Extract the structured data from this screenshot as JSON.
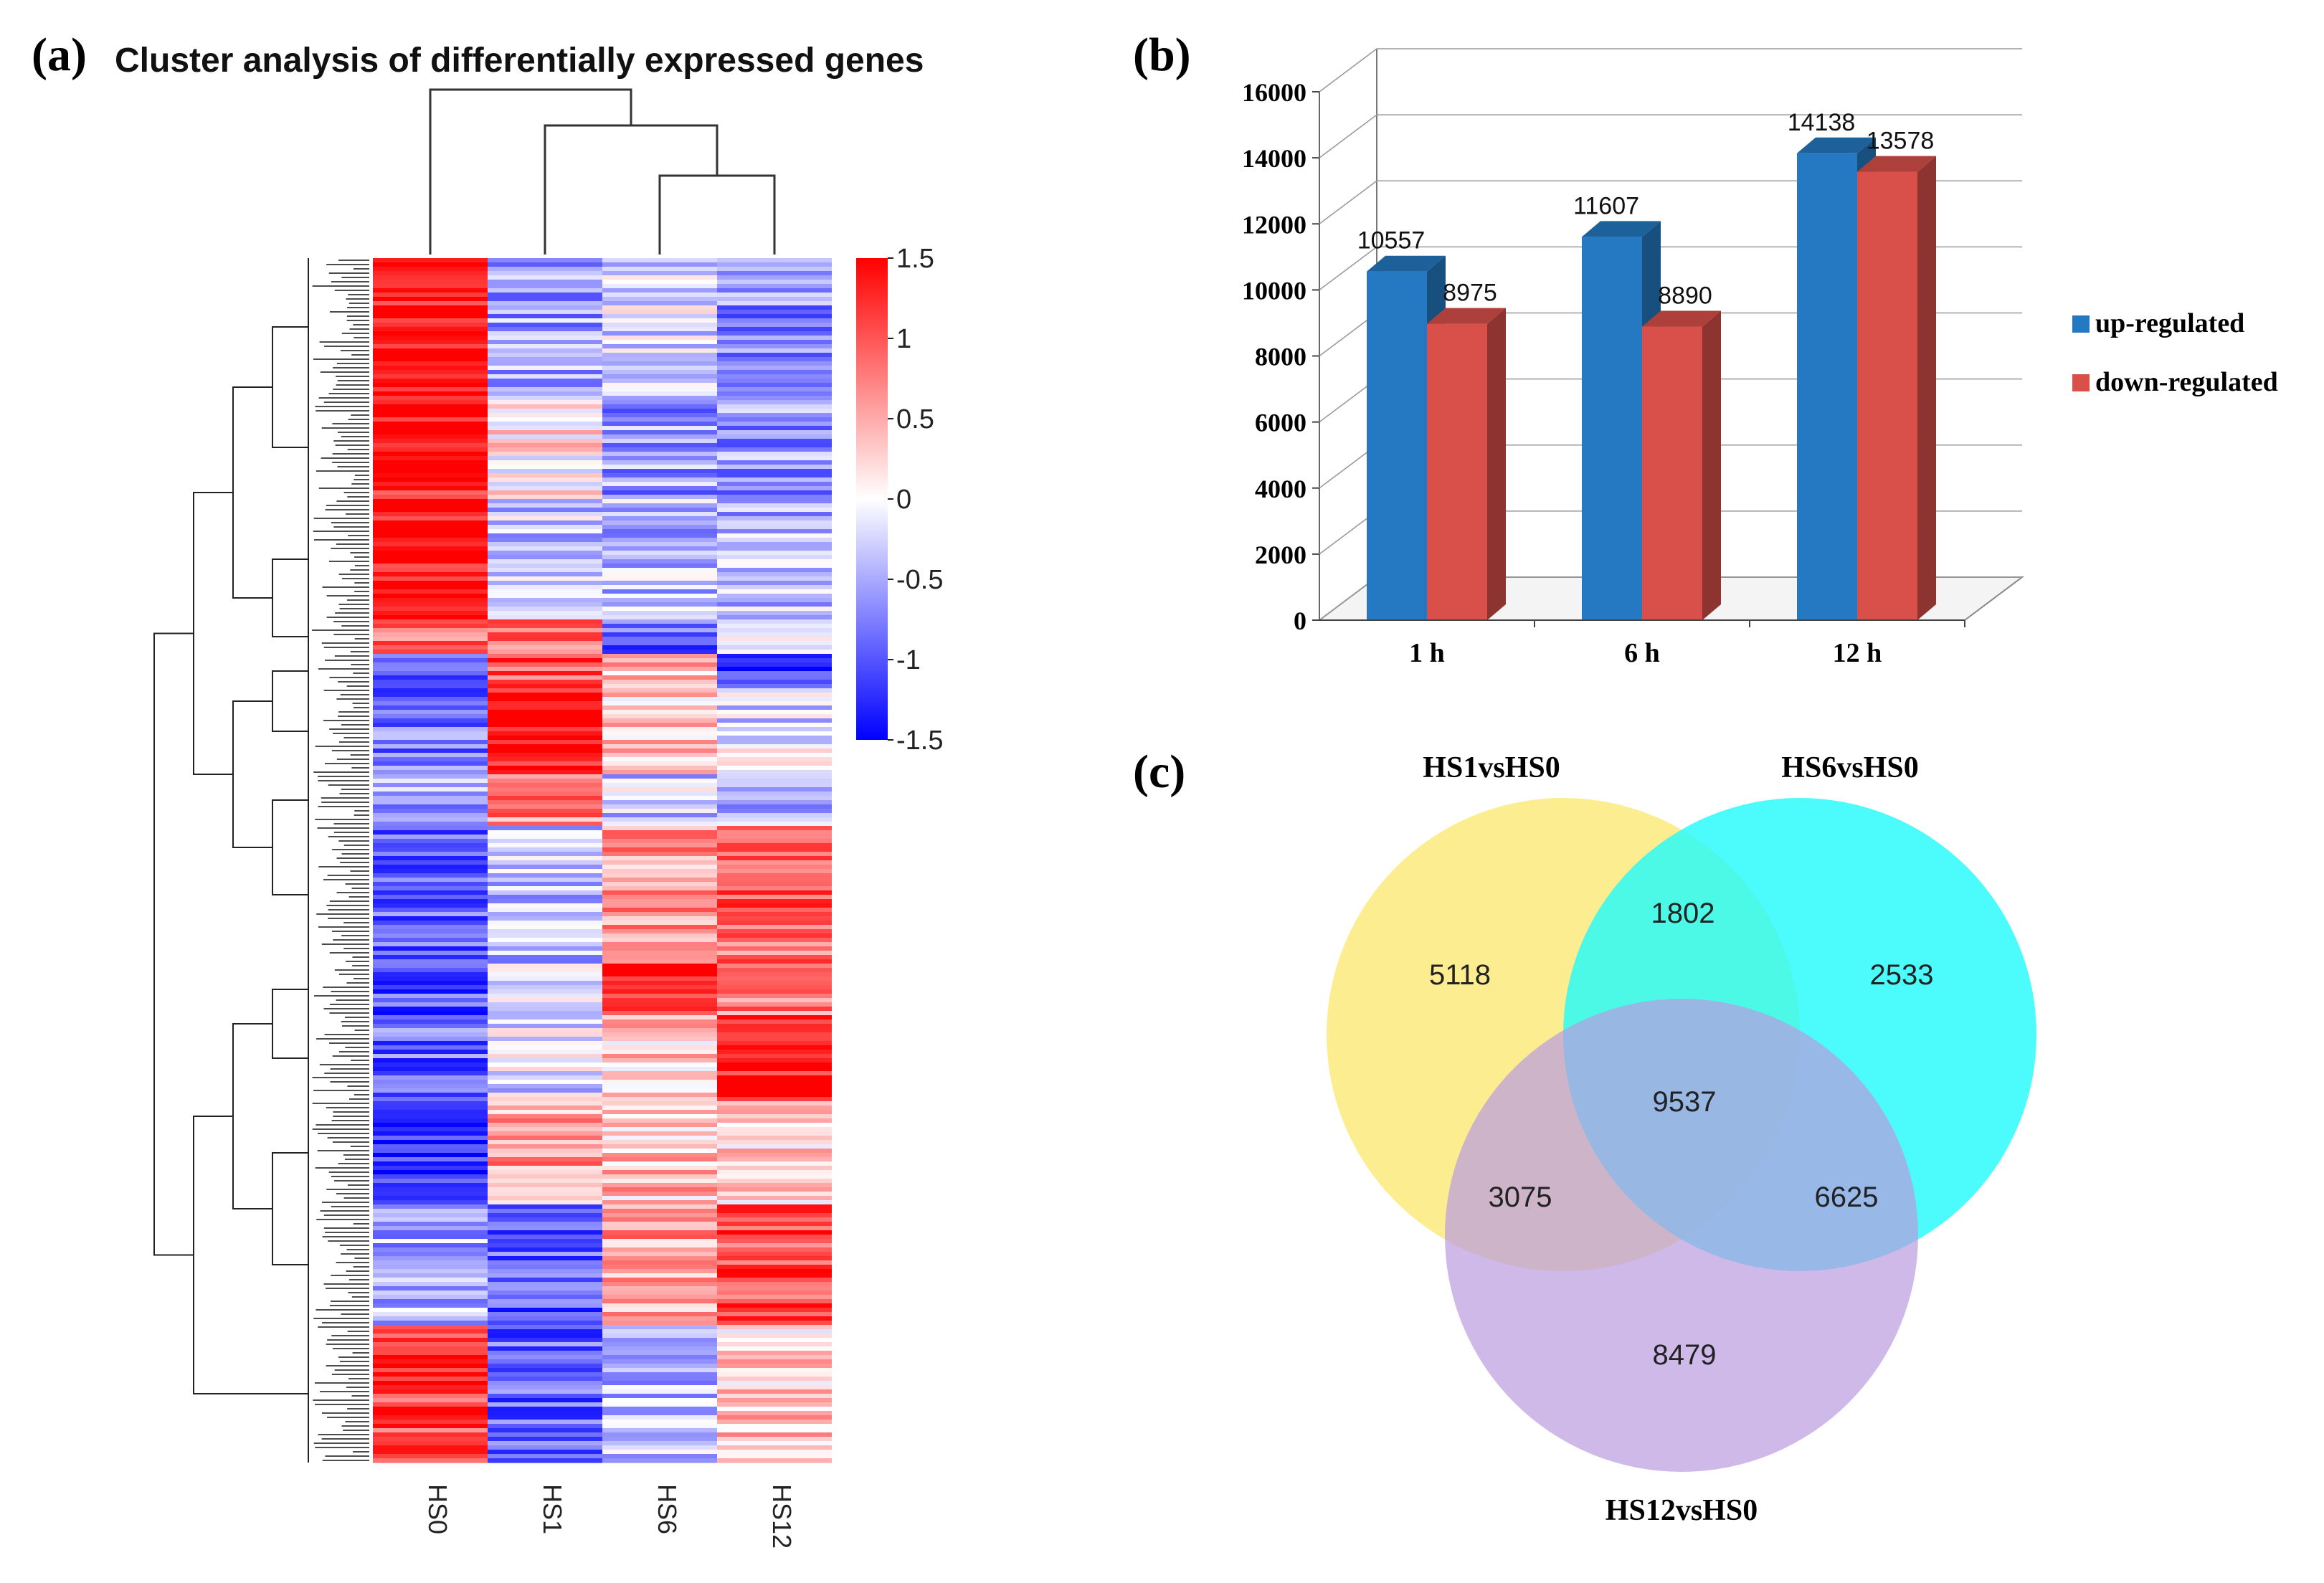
{
  "panels": {
    "a": "(a)",
    "b": "(b)",
    "c": "(c)"
  },
  "chart_data": [
    {
      "type": "heatmap",
      "title": "Cluster analysis of differentially expressed genes",
      "columns": [
        "HS0",
        "HS1",
        "HS6",
        "HS12"
      ],
      "colorbar": {
        "min": -1.5,
        "max": 1.5,
        "ticks": [
          "1.5",
          "1",
          "0.5",
          "0",
          "-0.5",
          "-1",
          "-1.5"
        ],
        "low_color": "#0000ff",
        "mid_color": "#ffffff",
        "high_color": "#ff0000"
      },
      "row_blocks": [
        {
          "weight": 8,
          "values": [
            1.45,
            -0.55,
            -0.2,
            -0.7
          ]
        },
        {
          "weight": 6,
          "values": [
            1.3,
            0.1,
            -0.6,
            -0.6
          ]
        },
        {
          "weight": 7,
          "values": [
            1.45,
            -0.3,
            -0.4,
            -0.4
          ]
        },
        {
          "weight": 2,
          "values": [
            0.9,
            0.8,
            -0.9,
            -0.3
          ]
        },
        {
          "weight": 2,
          "values": [
            -0.8,
            1.0,
            0.4,
            -1.2
          ]
        },
        {
          "weight": 5,
          "values": [
            -0.8,
            1.4,
            0.3,
            -0.2
          ]
        },
        {
          "weight": 3,
          "values": [
            -0.5,
            0.7,
            -0.3,
            -0.5
          ]
        },
        {
          "weight": 8,
          "values": [
            -0.9,
            -0.4,
            0.6,
            0.9
          ]
        },
        {
          "weight": 3,
          "values": [
            -1.0,
            -0.3,
            1.4,
            0.7
          ]
        },
        {
          "weight": 5,
          "values": [
            -0.9,
            -0.2,
            0.3,
            1.4
          ]
        },
        {
          "weight": 6,
          "values": [
            -1.3,
            0.6,
            0.4,
            0.3
          ]
        },
        {
          "weight": 7,
          "values": [
            -0.5,
            -1.0,
            0.6,
            1.1
          ]
        },
        {
          "weight": 8,
          "values": [
            1.1,
            -0.9,
            -0.4,
            0.3
          ]
        }
      ]
    },
    {
      "type": "bar",
      "categories": [
        "1 h",
        "6 h",
        "12 h"
      ],
      "series": [
        {
          "name": "up-regulated",
          "values": [
            10557,
            11607,
            14138
          ],
          "color": "#2479c2"
        },
        {
          "name": "down-regulated",
          "values": [
            8975,
            8890,
            13578
          ],
          "color": "#d9504b"
        }
      ],
      "value_labels": [
        [
          "10557",
          "11607",
          "14138"
        ],
        [
          "8975",
          "8890",
          "13578"
        ]
      ],
      "yticks": [
        "0",
        "2000",
        "4000",
        "6000",
        "8000",
        "10000",
        "12000",
        "14000",
        "16000"
      ],
      "ylim": [
        0,
        16000
      ],
      "legend": "right"
    },
    {
      "type": "venn",
      "sets": [
        {
          "name": "HS1vsHS0",
          "color": "#fde875"
        },
        {
          "name": "HS6vsHS0",
          "color": "#1ffbfb"
        },
        {
          "name": "HS12vsHS0",
          "color": "#b99be0"
        }
      ],
      "regions": {
        "only_HS1": "5118",
        "only_HS6": "2533",
        "only_HS12": "8479",
        "HS1_HS6": "1802",
        "HS1_HS12": "3075",
        "HS6_HS12": "6625",
        "all": "9537"
      }
    }
  ]
}
